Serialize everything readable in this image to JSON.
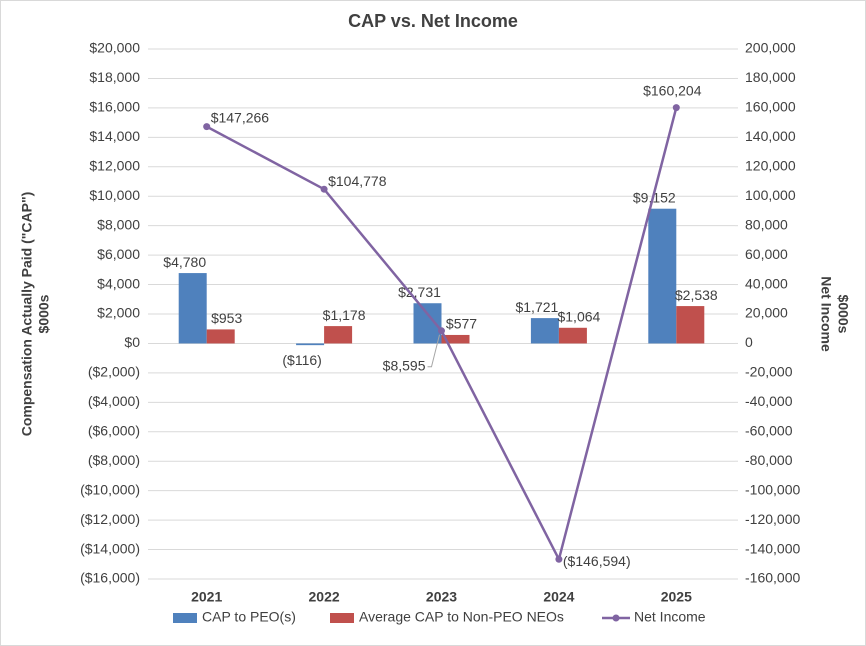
{
  "chart_data": {
    "type": "bar-line",
    "title": "CAP vs. Net Income",
    "ylabel": [
      "Compensation Actually Paid (\"CAP\")",
      "$000s"
    ],
    "y2label": [
      "Net Income",
      "$000s"
    ],
    "categories": [
      "2021",
      "2022",
      "2023",
      "2024",
      "2025"
    ],
    "series": [
      {
        "name": "CAP to PEO(s)",
        "type": "bar",
        "color": "#4f81bd",
        "values": [
          4780,
          -116,
          2731,
          1721,
          9152
        ],
        "value_labels": [
          "$4,780",
          "($116)",
          "$2,731",
          "$1,721",
          "$9,152"
        ]
      },
      {
        "name": "Average CAP to Non-PEO NEOs",
        "type": "bar",
        "color": "#c0504d",
        "values": [
          953,
          1178,
          577,
          1064,
          2538
        ],
        "value_labels": [
          "$953",
          "$1,178",
          "$577",
          "$1,064",
          "$2,538"
        ]
      },
      {
        "name": "Net Income",
        "type": "line",
        "axis": "y2",
        "color": "#8064a2",
        "values": [
          147266,
          104778,
          8595,
          -146594,
          160204
        ],
        "value_labels": [
          "$147,266",
          "$104,778",
          "$8,595",
          "($146,594)",
          "$160,204"
        ]
      }
    ],
    "ylim": [
      -16000,
      20000
    ],
    "yticks": [
      {
        "value": -16000,
        "label": "($16,000)"
      },
      {
        "value": -14000,
        "label": "($14,000)"
      },
      {
        "value": -12000,
        "label": "($12,000)"
      },
      {
        "value": -10000,
        "label": "($10,000)"
      },
      {
        "value": -8000,
        "label": "($8,000)"
      },
      {
        "value": -6000,
        "label": "($6,000)"
      },
      {
        "value": -4000,
        "label": "($4,000)"
      },
      {
        "value": -2000,
        "label": "($2,000)"
      },
      {
        "value": 0,
        "label": "$0"
      },
      {
        "value": 2000,
        "label": "$2,000"
      },
      {
        "value": 4000,
        "label": "$4,000"
      },
      {
        "value": 6000,
        "label": "$6,000"
      },
      {
        "value": 8000,
        "label": "$8,000"
      },
      {
        "value": 10000,
        "label": "$10,000"
      },
      {
        "value": 12000,
        "label": "$12,000"
      },
      {
        "value": 14000,
        "label": "$14,000"
      },
      {
        "value": 16000,
        "label": "$16,000"
      },
      {
        "value": 18000,
        "label": "$18,000"
      },
      {
        "value": 20000,
        "label": "$20,000"
      }
    ],
    "y2lim": [
      -160000,
      200000
    ],
    "y2ticks": [
      {
        "value": -160000,
        "label": "-160,000"
      },
      {
        "value": -140000,
        "label": "-140,000"
      },
      {
        "value": -120000,
        "label": "-120,000"
      },
      {
        "value": -100000,
        "label": "-100,000"
      },
      {
        "value": -80000,
        "label": "-80,000"
      },
      {
        "value": -60000,
        "label": "-60,000"
      },
      {
        "value": -40000,
        "label": "-40,000"
      },
      {
        "value": -20000,
        "label": "-20,000"
      },
      0,
      {
        "value": 20000,
        "label": "20,000"
      },
      {
        "value": 40000,
        "label": "40,000"
      },
      {
        "value": 60000,
        "label": "60,000"
      },
      {
        "value": 80000,
        "label": "80,000"
      },
      {
        "value": 100000,
        "label": "100,000"
      },
      {
        "value": 120000,
        "label": "120,000"
      },
      {
        "value": 140000,
        "label": "140,000"
      },
      {
        "value": 160000,
        "label": "160,000"
      },
      {
        "value": 180000,
        "label": "180,000"
      },
      {
        "value": 200000,
        "label": "200,000"
      }
    ],
    "grid": true,
    "legend": "bottom"
  }
}
